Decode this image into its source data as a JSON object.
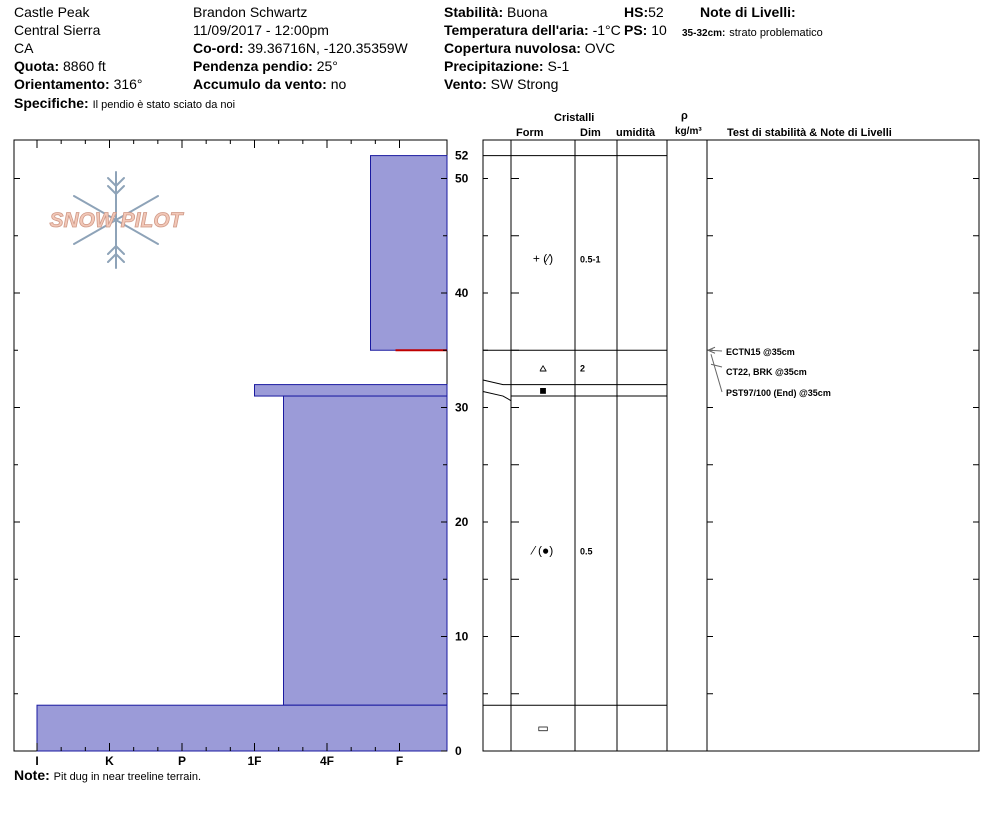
{
  "header": {
    "location": "Castle Peak",
    "range": "Central Sierra",
    "state": "CA",
    "elevation_label": "Quota:",
    "elevation_value": "8860 ft",
    "aspect_label": "Orientamento:",
    "aspect_value": "316°",
    "specifics_label": "Specifiche:",
    "specifics_value": "Il pendio è stato sciato da noi",
    "observer": "Brandon Schwartz",
    "datetime": "11/09/2017 - 12:00pm",
    "coord_label": "Co-ord:",
    "coord_value": "39.36716N, -120.35359W",
    "slope_label": "Pendenza pendio:",
    "slope_value": "25°",
    "wind_loading_label": "Accumulo da vento:",
    "wind_loading_value": "no",
    "stability_label": "Stabilità:",
    "stability_value": "Buona",
    "air_temp_label": "Temperatura dell'aria:",
    "air_temp_value": "-1°C",
    "cloud_label": "Copertura nuvolosa:",
    "cloud_value": "OVC",
    "precip_label": "Precipitazione:",
    "precip_value": "S-1",
    "wind_label": "Vento:",
    "wind_value": "SW Strong",
    "hs_label": "HS:",
    "hs_value": "52",
    "ps_label": "PS:",
    "ps_value": "10",
    "layer_notes_label": "Note di Livelli:",
    "layer_note_range": "35-32cm:",
    "layer_note_text": "strato problematico"
  },
  "logo_text": "SNOW PILOT",
  "note_label": "Note:",
  "note_text": "Pit dug in near treeline terrain.",
  "table_headers": {
    "cristalli": "Cristalli",
    "form": "Form",
    "dim": "Dim",
    "umidita": "umidità",
    "rho": "ρ",
    "density_unit": "kg/m³",
    "stability": "Test di stabilità & Note di Livelli"
  },
  "colors": {
    "layer_fill": "#9b9bd8",
    "layer_border": "#1a1aa0",
    "problem_line": "#c00000"
  },
  "chart_data": {
    "type": "snow-profile",
    "hardness_categories": [
      "I",
      "K",
      "P",
      "1F",
      "4F",
      "F"
    ],
    "height_ticks": [
      0,
      10,
      20,
      30,
      40,
      50,
      52
    ],
    "total_depth": 52,
    "layers": [
      {
        "top": 52,
        "bottom": 35,
        "hardness": 4.6
      },
      {
        "top": 35,
        "bottom": 32,
        "hardness": 5.8
      },
      {
        "top": 32,
        "bottom": 31,
        "hardness": 3.0
      },
      {
        "top": 31,
        "bottom": 4,
        "hardness": 3.4
      },
      {
        "top": 4,
        "bottom": 0,
        "hardness": 0.0
      }
    ],
    "problem_layer_height": 35,
    "grain_rows": [
      {
        "form": "+ (⁄)",
        "dim": "0.5-1",
        "height": 43
      },
      {
        "form": "⩟",
        "dim": "2",
        "height": 33.5
      },
      {
        "form": "■",
        "dim": "",
        "height": 31.5
      },
      {
        "form": "⁄ (●)",
        "dim": "0.5",
        "height": 17.5
      },
      {
        "form": "▭",
        "dim": "",
        "height": 2
      }
    ],
    "stability_tests": [
      {
        "label": "ECTN15 @35cm"
      },
      {
        "label": "CT22, BRK @35cm"
      },
      {
        "label": "PST97/100 (End) @35cm"
      }
    ]
  }
}
